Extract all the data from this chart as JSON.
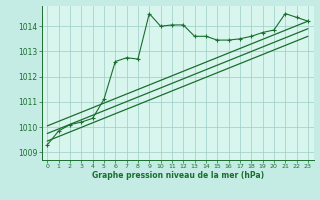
{
  "bg_color": "#c5ece4",
  "plot_bg_color": "#d8f5ee",
  "grid_color": "#9dcec6",
  "line_color": "#1a6e2e",
  "xlabel": "Graphe pression niveau de la mer (hPa)",
  "xlim": [
    -0.5,
    23.5
  ],
  "ylim": [
    1008.7,
    1014.8
  ],
  "yticks": [
    1009,
    1010,
    1011,
    1012,
    1013,
    1014
  ],
  "xticks": [
    0,
    1,
    2,
    3,
    4,
    5,
    6,
    7,
    8,
    9,
    10,
    11,
    12,
    13,
    14,
    15,
    16,
    17,
    18,
    19,
    20,
    21,
    22,
    23
  ],
  "main_series": {
    "x": [
      0,
      1,
      2,
      3,
      4,
      5,
      6,
      7,
      8,
      9,
      10,
      11,
      12,
      13,
      14,
      15,
      16,
      17,
      18,
      19,
      20,
      21,
      22,
      23
    ],
    "y": [
      1009.3,
      1009.85,
      1010.1,
      1010.2,
      1010.35,
      1011.1,
      1012.6,
      1012.75,
      1012.7,
      1014.5,
      1014.0,
      1014.05,
      1014.05,
      1013.6,
      1013.6,
      1013.45,
      1013.45,
      1013.5,
      1013.6,
      1013.75,
      1013.85,
      1014.5,
      1014.35,
      1014.2
    ]
  },
  "trend_line1": {
    "x": [
      0,
      23
    ],
    "y": [
      1010.05,
      1014.2
    ]
  },
  "trend_line2": {
    "x": [
      0,
      23
    ],
    "y": [
      1009.75,
      1013.9
    ]
  },
  "trend_line3": {
    "x": [
      0,
      23
    ],
    "y": [
      1009.45,
      1013.6
    ]
  }
}
